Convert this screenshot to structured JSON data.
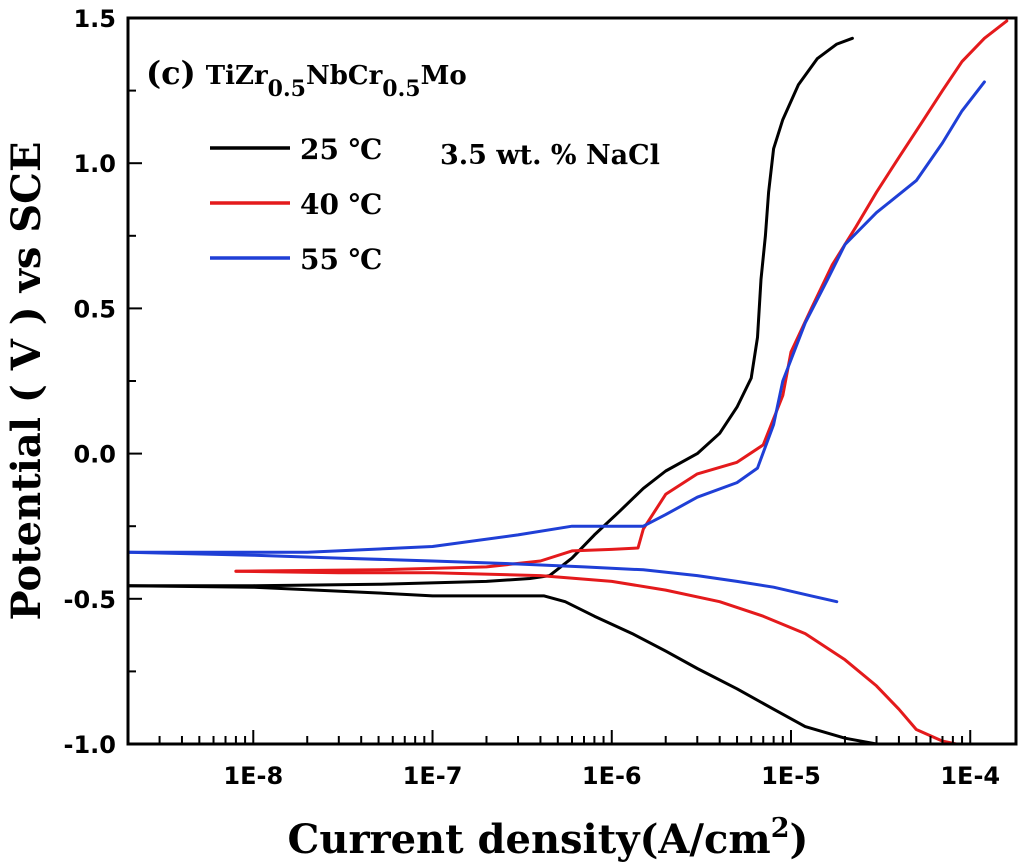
{
  "chart_data": {
    "type": "line",
    "panel_label": "(c)",
    "alloy": {
      "base": "TiZr",
      "sub1": "0.5",
      "mid": "NbCr",
      "sub2": "0.5",
      "end": "Mo"
    },
    "annotation": "3.5 wt. % NaCl",
    "xlabel": "Current density(A/cm",
    "xlabel_sup": "2",
    "xlabel_close": ")",
    "ylabel": "Potential ( V ) vs SCE",
    "xscale": "log",
    "xlim": [
      2e-09,
      0.00018
    ],
    "ylim": [
      -1.0,
      1.5
    ],
    "xticks": [
      1e-08,
      1e-07,
      1e-06,
      1e-05,
      0.0001
    ],
    "xtick_labels": [
      "1E-8",
      "1E-7",
      "1E-6",
      "1E-5",
      "1E-4"
    ],
    "yticks": [
      -1.0,
      -0.5,
      0.0,
      0.5,
      1.0,
      1.5
    ],
    "ytick_labels": [
      "-1.0",
      "-0.5",
      "0.0",
      "0.5",
      "1.0",
      "1.5"
    ],
    "legend_position": "top-left",
    "series": [
      {
        "name": "25 ℃",
        "color": "#000000",
        "cathodic": [
          [
            0.0001,
            -1.01
          ],
          [
            3e-05,
            -1.0
          ],
          [
            2e-05,
            -0.98
          ],
          [
            1.2e-05,
            -0.94
          ],
          [
            8e-06,
            -0.88
          ],
          [
            5e-06,
            -0.81
          ],
          [
            3e-06,
            -0.74
          ],
          [
            2e-06,
            -0.68
          ],
          [
            1.3e-06,
            -0.62
          ],
          [
            8e-07,
            -0.56
          ],
          [
            5.5e-07,
            -0.51
          ],
          [
            4.2e-07,
            -0.49
          ],
          [
            3e-07,
            -0.49
          ],
          [
            1e-07,
            -0.49
          ],
          [
            5e-08,
            -0.48
          ],
          [
            1e-08,
            -0.46
          ],
          [
            2e-09,
            -0.455
          ]
        ],
        "anodic": [
          [
            2e-09,
            -0.455
          ],
          [
            1e-08,
            -0.455
          ],
          [
            5e-08,
            -0.45
          ],
          [
            2e-07,
            -0.44
          ],
          [
            3.5e-07,
            -0.43
          ],
          [
            4.5e-07,
            -0.42
          ],
          [
            6e-07,
            -0.36
          ],
          [
            8e-07,
            -0.28
          ],
          [
            1.1e-06,
            -0.2
          ],
          [
            1.5e-06,
            -0.12
          ],
          [
            2e-06,
            -0.06
          ],
          [
            3e-06,
            0.0
          ],
          [
            4e-06,
            0.07
          ],
          [
            5e-06,
            0.16
          ],
          [
            6e-06,
            0.26
          ],
          [
            6.5e-06,
            0.4
          ],
          [
            6.8e-06,
            0.6
          ],
          [
            7.2e-06,
            0.75
          ],
          [
            7.5e-06,
            0.9
          ],
          [
            8e-06,
            1.05
          ],
          [
            9e-06,
            1.15
          ],
          [
            1.1e-05,
            1.27
          ],
          [
            1.4e-05,
            1.36
          ],
          [
            1.8e-05,
            1.41
          ],
          [
            2.2e-05,
            1.43
          ]
        ]
      },
      {
        "name": "40 ℃",
        "color": "#e41a1c",
        "cathodic": [
          [
            0.00016,
            -1.02
          ],
          [
            0.0001,
            -1.01
          ],
          [
            7e-05,
            -0.99
          ],
          [
            5e-05,
            -0.95
          ],
          [
            4e-05,
            -0.88
          ],
          [
            3e-05,
            -0.8
          ],
          [
            2e-05,
            -0.71
          ],
          [
            1.2e-05,
            -0.62
          ],
          [
            7e-06,
            -0.56
          ],
          [
            4e-06,
            -0.51
          ],
          [
            2e-06,
            -0.47
          ],
          [
            1e-06,
            -0.44
          ],
          [
            4e-07,
            -0.42
          ],
          [
            1e-07,
            -0.41
          ],
          [
            3e-08,
            -0.41
          ],
          [
            8e-09,
            -0.405
          ]
        ],
        "anodic": [
          [
            8e-09,
            -0.405
          ],
          [
            5e-08,
            -0.4
          ],
          [
            2e-07,
            -0.39
          ],
          [
            4e-07,
            -0.37
          ],
          [
            6e-07,
            -0.335
          ],
          [
            1e-06,
            -0.33
          ],
          [
            1.4e-06,
            -0.325
          ],
          [
            1.5e-06,
            -0.26
          ],
          [
            2e-06,
            -0.14
          ],
          [
            3e-06,
            -0.07
          ],
          [
            5e-06,
            -0.03
          ],
          [
            7e-06,
            0.03
          ],
          [
            9e-06,
            0.2
          ],
          [
            1e-05,
            0.35
          ],
          [
            1.3e-05,
            0.5
          ],
          [
            1.7e-05,
            0.65
          ],
          [
            2.3e-05,
            0.78
          ],
          [
            3e-05,
            0.9
          ],
          [
            4e-05,
            1.02
          ],
          [
            5.5e-05,
            1.15
          ],
          [
            7e-05,
            1.25
          ],
          [
            9e-05,
            1.35
          ],
          [
            0.00012,
            1.43
          ],
          [
            0.00016,
            1.49
          ]
        ]
      },
      {
        "name": "55 ℃",
        "color": "#1f3fd6",
        "cathodic": [
          [
            1.8e-05,
            -0.51
          ],
          [
            1.3e-05,
            -0.49
          ],
          [
            8e-06,
            -0.46
          ],
          [
            5e-06,
            -0.44
          ],
          [
            3e-06,
            -0.42
          ],
          [
            1.5e-06,
            -0.4
          ],
          [
            7e-07,
            -0.39
          ],
          [
            3e-07,
            -0.38
          ],
          [
            1e-07,
            -0.37
          ],
          [
            3e-08,
            -0.36
          ],
          [
            1e-08,
            -0.35
          ],
          [
            2e-09,
            -0.34
          ]
        ],
        "anodic": [
          [
            2e-09,
            -0.34
          ],
          [
            2e-08,
            -0.34
          ],
          [
            1e-07,
            -0.32
          ],
          [
            3e-07,
            -0.28
          ],
          [
            6e-07,
            -0.25
          ],
          [
            1.5e-06,
            -0.25
          ],
          [
            2e-06,
            -0.21
          ],
          [
            3e-06,
            -0.15
          ],
          [
            5e-06,
            -0.1
          ],
          [
            6.5e-06,
            -0.05
          ],
          [
            8e-06,
            0.1
          ],
          [
            9e-06,
            0.25
          ],
          [
            1.2e-05,
            0.45
          ],
          [
            1.6e-05,
            0.6
          ],
          [
            2e-05,
            0.72
          ],
          [
            3e-05,
            0.83
          ],
          [
            5e-05,
            0.94
          ],
          [
            7e-05,
            1.07
          ],
          [
            9e-05,
            1.18
          ],
          [
            0.00012,
            1.28
          ]
        ]
      }
    ]
  }
}
